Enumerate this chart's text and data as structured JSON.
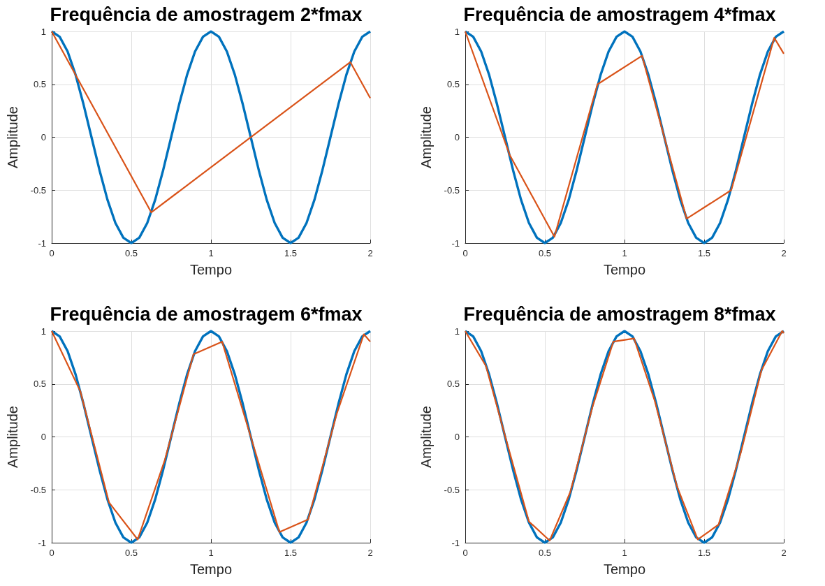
{
  "chart_data": [
    {
      "type": "line",
      "title": "Frequência de amostragem 2*fmax",
      "xlabel": "Tempo",
      "ylabel": "Amplitude",
      "xlim": [
        0,
        2
      ],
      "ylim": [
        -1,
        1
      ],
      "xticks": [
        0,
        0.5,
        1,
        1.5,
        2
      ],
      "yticks": [
        -1,
        -0.5,
        0,
        0.5,
        1
      ],
      "grid": true,
      "series": [
        {
          "color": "#0072bd",
          "x": [
            0,
            0.05,
            0.1,
            0.15,
            0.2,
            0.25,
            0.3,
            0.35,
            0.4,
            0.45,
            0.5,
            0.55,
            0.6,
            0.65,
            0.7,
            0.75,
            0.8,
            0.85,
            0.9,
            0.95,
            1,
            1.05,
            1.1,
            1.15,
            1.2,
            1.25,
            1.3,
            1.35,
            1.4,
            1.45,
            1.5,
            1.55,
            1.6,
            1.65,
            1.7,
            1.75,
            1.8,
            1.85,
            1.9,
            1.95,
            2
          ],
          "values": [
            1,
            0.95,
            0.81,
            0.59,
            0.31,
            0,
            -0.31,
            -0.59,
            -0.81,
            -0.95,
            -1,
            -0.95,
            -0.81,
            -0.59,
            -0.31,
            0,
            0.31,
            0.59,
            0.81,
            0.95,
            1,
            0.95,
            0.81,
            0.59,
            0.31,
            0,
            -0.31,
            -0.59,
            -0.81,
            -0.95,
            -1,
            -0.95,
            -0.81,
            -0.59,
            -0.31,
            0,
            0.31,
            0.59,
            0.81,
            0.95,
            1
          ]
        },
        {
          "color": "#d95319",
          "x": [
            0,
            0.625,
            1.875,
            2
          ],
          "values": [
            1,
            -0.71,
            0.71,
            0.37
          ]
        }
      ]
    },
    {
      "type": "line",
      "title": "Frequência de amostragem 4*fmax",
      "xlabel": "Tempo",
      "ylabel": "Amplitude",
      "xlim": [
        0,
        2
      ],
      "ylim": [
        -1,
        1
      ],
      "xticks": [
        0,
        0.5,
        1,
        1.5,
        2
      ],
      "yticks": [
        -1,
        -0.5,
        0,
        0.5,
        1
      ],
      "grid": true,
      "series": [
        {
          "color": "#0072bd",
          "x": [
            0,
            0.05,
            0.1,
            0.15,
            0.2,
            0.25,
            0.3,
            0.35,
            0.4,
            0.45,
            0.5,
            0.55,
            0.6,
            0.65,
            0.7,
            0.75,
            0.8,
            0.85,
            0.9,
            0.95,
            1,
            1.05,
            1.1,
            1.15,
            1.2,
            1.25,
            1.3,
            1.35,
            1.4,
            1.45,
            1.5,
            1.55,
            1.6,
            1.65,
            1.7,
            1.75,
            1.8,
            1.85,
            1.9,
            1.95,
            2
          ],
          "values": [
            1,
            0.95,
            0.81,
            0.59,
            0.31,
            0,
            -0.31,
            -0.59,
            -0.81,
            -0.95,
            -1,
            -0.95,
            -0.81,
            -0.59,
            -0.31,
            0,
            0.31,
            0.59,
            0.81,
            0.95,
            1,
            0.95,
            0.81,
            0.59,
            0.31,
            0,
            -0.31,
            -0.59,
            -0.81,
            -0.95,
            -1,
            -0.95,
            -0.81,
            -0.59,
            -0.31,
            0,
            0.31,
            0.59,
            0.81,
            0.95,
            1
          ]
        },
        {
          "color": "#d95319",
          "x": [
            0,
            0.28,
            0.56,
            0.83,
            1.11,
            1.39,
            1.67,
            1.94,
            2
          ],
          "values": [
            1,
            -0.17,
            -0.94,
            0.5,
            0.77,
            -0.77,
            -0.5,
            0.94,
            0.79
          ]
        }
      ]
    },
    {
      "type": "line",
      "title": "Frequência de amostragem 6*fmax",
      "xlabel": "Tempo",
      "ylabel": "Amplitude",
      "xlim": [
        0,
        2
      ],
      "ylim": [
        -1,
        1
      ],
      "xticks": [
        0,
        0.5,
        1,
        1.5,
        2
      ],
      "yticks": [
        -1,
        -0.5,
        0,
        0.5,
        1
      ],
      "grid": true,
      "series": [
        {
          "color": "#0072bd",
          "x": [
            0,
            0.05,
            0.1,
            0.15,
            0.2,
            0.25,
            0.3,
            0.35,
            0.4,
            0.45,
            0.5,
            0.55,
            0.6,
            0.65,
            0.7,
            0.75,
            0.8,
            0.85,
            0.9,
            0.95,
            1,
            1.05,
            1.1,
            1.15,
            1.2,
            1.25,
            1.3,
            1.35,
            1.4,
            1.45,
            1.5,
            1.55,
            1.6,
            1.65,
            1.7,
            1.75,
            1.8,
            1.85,
            1.9,
            1.95,
            2
          ],
          "values": [
            1,
            0.95,
            0.81,
            0.59,
            0.31,
            0,
            -0.31,
            -0.59,
            -0.81,
            -0.95,
            -1,
            -0.95,
            -0.81,
            -0.59,
            -0.31,
            0,
            0.31,
            0.59,
            0.81,
            0.95,
            1,
            0.95,
            0.81,
            0.59,
            0.31,
            0,
            -0.31,
            -0.59,
            -0.81,
            -0.95,
            -1,
            -0.95,
            -0.81,
            -0.59,
            -0.31,
            0,
            0.31,
            0.59,
            0.81,
            0.95,
            1
          ]
        },
        {
          "color": "#d95319",
          "x": [
            0,
            0.18,
            0.36,
            0.54,
            0.71,
            0.89,
            1.07,
            1.25,
            1.43,
            1.61,
            1.79,
            1.96,
            2
          ],
          "values": [
            1,
            0.43,
            -0.62,
            -0.97,
            -0.22,
            0.78,
            0.9,
            0,
            -0.9,
            -0.78,
            0.22,
            0.97,
            0.9
          ]
        }
      ]
    },
    {
      "type": "line",
      "title": "Frequência de amostragem 8*fmax",
      "xlabel": "Tempo",
      "ylabel": "Amplitude",
      "xlim": [
        0,
        2
      ],
      "ylim": [
        -1,
        1
      ],
      "xticks": [
        0,
        0.5,
        1,
        1.5,
        2
      ],
      "yticks": [
        -1,
        -0.5,
        0,
        0.5,
        1
      ],
      "grid": true,
      "series": [
        {
          "color": "#0072bd",
          "x": [
            0,
            0.05,
            0.1,
            0.15,
            0.2,
            0.25,
            0.3,
            0.35,
            0.4,
            0.45,
            0.5,
            0.55,
            0.6,
            0.65,
            0.7,
            0.75,
            0.8,
            0.85,
            0.9,
            0.95,
            1,
            1.05,
            1.1,
            1.15,
            1.2,
            1.25,
            1.3,
            1.35,
            1.4,
            1.45,
            1.5,
            1.55,
            1.6,
            1.65,
            1.7,
            1.75,
            1.8,
            1.85,
            1.9,
            1.95,
            2
          ],
          "values": [
            1,
            0.95,
            0.81,
            0.59,
            0.31,
            0,
            -0.31,
            -0.59,
            -0.81,
            -0.95,
            -1,
            -0.95,
            -0.81,
            -0.59,
            -0.31,
            0,
            0.31,
            0.59,
            0.81,
            0.95,
            1,
            0.95,
            0.81,
            0.59,
            0.31,
            0,
            -0.31,
            -0.59,
            -0.81,
            -0.95,
            -1,
            -0.95,
            -0.81,
            -0.59,
            -0.31,
            0,
            0.31,
            0.59,
            0.81,
            0.95,
            1
          ]
        },
        {
          "color": "#d95319",
          "x": [
            0,
            0.13,
            0.27,
            0.4,
            0.53,
            0.66,
            0.8,
            0.93,
            1.06,
            1.19,
            1.33,
            1.46,
            1.59,
            1.73,
            1.86,
            1.99,
            2
          ],
          "values": [
            1,
            0.67,
            -0.1,
            -0.8,
            -0.98,
            -0.52,
            0.29,
            0.9,
            0.93,
            0.34,
            -0.47,
            -0.97,
            -0.83,
            -0.15,
            0.63,
            1,
            0.98
          ]
        }
      ]
    }
  ]
}
